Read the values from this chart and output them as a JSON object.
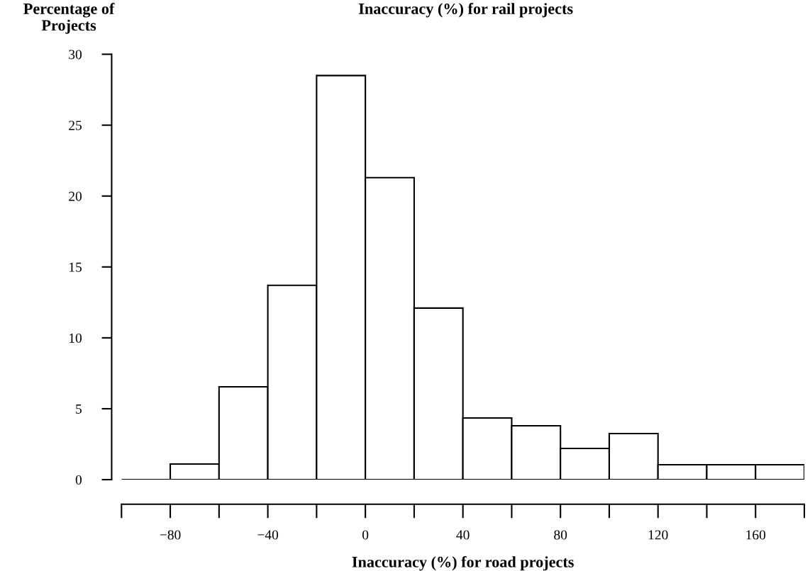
{
  "chart_data": {
    "type": "histogram",
    "title": "Inaccuracy (%) for rail projects",
    "xlabel": "Inaccuracy (%) for road projects",
    "ylabel": "Percentage of\nProjects",
    "bins": [
      -100,
      -80,
      -60,
      -40,
      -20,
      0,
      20,
      40,
      60,
      80,
      100,
      120,
      140,
      160,
      180
    ],
    "values": [
      0,
      1.1,
      6.55,
      13.7,
      28.5,
      21.3,
      12.1,
      4.35,
      3.8,
      2.2,
      3.25,
      1.05,
      1.05,
      1.05
    ],
    "color": "#ffffff",
    "xlim": [
      -100,
      180
    ],
    "xticks": [
      {
        "value": -80,
        "label": "−80"
      },
      {
        "value": -40,
        "label": "−40"
      },
      0,
      40,
      80,
      120,
      160
    ],
    "ylim": [
      0,
      30
    ],
    "yticks": [
      0,
      5,
      10,
      15,
      20,
      25,
      30
    ],
    "grid": false,
    "legend": false
  }
}
